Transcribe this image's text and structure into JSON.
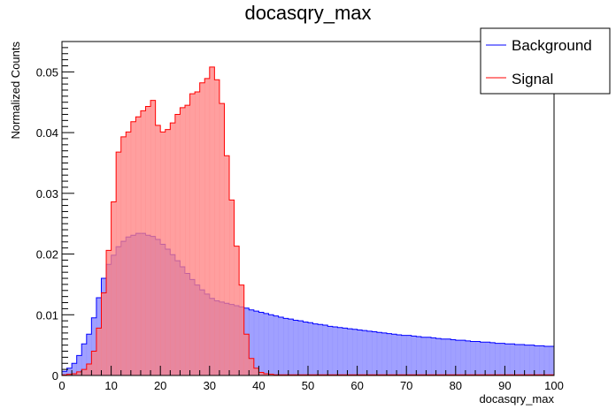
{
  "chart_data": {
    "type": "histogram",
    "title": "docasqry_max",
    "xlabel": "docasqry_max",
    "ylabel": "Normalized Counts",
    "xlim": [
      0,
      100
    ],
    "ylim": [
      0,
      0.055
    ],
    "xticks": [
      0,
      10,
      20,
      30,
      40,
      50,
      60,
      70,
      80,
      90,
      100
    ],
    "yticks": [
      0,
      0.01,
      0.02,
      0.03,
      0.04,
      0.05
    ],
    "ytick_labels": [
      "0",
      "0.01",
      "0.02",
      "0.03",
      "0.04",
      "0.05"
    ],
    "grid": false,
    "legend_position": "top-right",
    "bin_width": 1,
    "bin_start": 0,
    "series": [
      {
        "name": "Background",
        "color": "#0000ff",
        "fill": "#8080ff",
        "values": [
          0.0007,
          0.0012,
          0.002,
          0.0033,
          0.0052,
          0.0068,
          0.0095,
          0.0128,
          0.016,
          0.0183,
          0.0198,
          0.0212,
          0.0221,
          0.0228,
          0.0231,
          0.0234,
          0.0234,
          0.0231,
          0.0229,
          0.0224,
          0.0216,
          0.0208,
          0.0199,
          0.0189,
          0.0179,
          0.0168,
          0.0158,
          0.0149,
          0.0141,
          0.0134,
          0.0127,
          0.0123,
          0.0121,
          0.0119,
          0.0117,
          0.0115,
          0.0113,
          0.0111,
          0.0108,
          0.0106,
          0.0104,
          0.0102,
          0.01,
          0.0098,
          0.0096,
          0.0094,
          0.0093,
          0.0091,
          0.009,
          0.0088,
          0.0087,
          0.0085,
          0.0084,
          0.0083,
          0.0081,
          0.008,
          0.0079,
          0.0078,
          0.0077,
          0.0076,
          0.0075,
          0.0074,
          0.0073,
          0.0072,
          0.0071,
          0.007,
          0.0069,
          0.0068,
          0.0067,
          0.0066,
          0.0066,
          0.0065,
          0.0064,
          0.0063,
          0.0063,
          0.0062,
          0.0061,
          0.006,
          0.006,
          0.0059,
          0.0058,
          0.0058,
          0.0057,
          0.0056,
          0.0056,
          0.0055,
          0.0055,
          0.0054,
          0.0053,
          0.0053,
          0.0052,
          0.0052,
          0.0051,
          0.0051,
          0.005,
          0.005,
          0.0049,
          0.0049,
          0.0048,
          0.0048
        ]
      },
      {
        "name": "Signal",
        "color": "#ff0000",
        "fill": "#ff7f7f",
        "values": [
          0.0001,
          0.0002,
          0.0003,
          0.0006,
          0.001,
          0.0019,
          0.004,
          0.0078,
          0.0136,
          0.0206,
          0.0286,
          0.0368,
          0.0393,
          0.0401,
          0.0418,
          0.0426,
          0.0436,
          0.0443,
          0.0453,
          0.0412,
          0.0401,
          0.0405,
          0.0416,
          0.043,
          0.0441,
          0.0445,
          0.0464,
          0.0467,
          0.0482,
          0.0489,
          0.0508,
          0.0487,
          0.0448,
          0.0362,
          0.0289,
          0.0213,
          0.0149,
          0.0068,
          0.0028,
          0.0012,
          0.0005,
          0.0003,
          0.0002,
          0.0001,
          0.0001,
          0.0001,
          0.0001,
          0.0001,
          0.0001,
          0.0001,
          0.0001,
          0.0001,
          0.0001,
          0.0001,
          0.0001,
          0.0001,
          0.0001,
          0.0001,
          0.0001,
          0.0001,
          0.0001,
          0.0001,
          0.0001,
          0.0001,
          0.0001,
          0.0001,
          0.0001,
          0.0001,
          0.0001,
          0.0001,
          0.0001,
          0.0001,
          0.0001,
          0.0001,
          0.0001,
          0.0001,
          0.0001,
          0.0001,
          0.0001,
          0.0001,
          0.0001,
          0.0001,
          0.0001,
          0.0001,
          0.0001,
          0.0001,
          0.0001,
          0.0001,
          0.0001,
          0.0001,
          0.0001,
          0.0001,
          0.0001,
          0.0001,
          0.0001,
          0.0001,
          0.0001,
          0.0001,
          0.0001,
          0.0001
        ]
      }
    ]
  }
}
